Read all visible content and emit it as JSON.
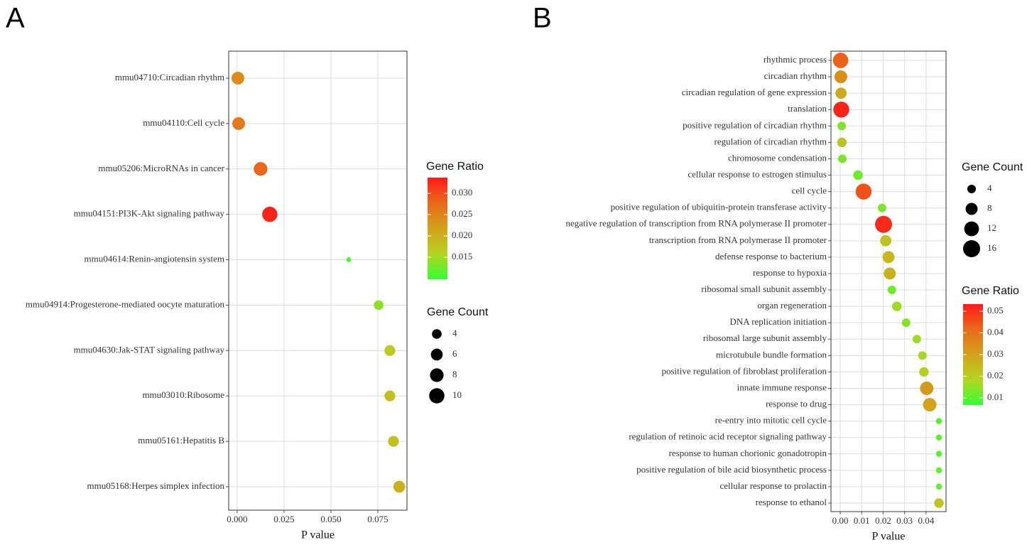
{
  "chart_data": [
    {
      "type": "bubble",
      "panel": "A",
      "categories": [
        "mmu04710:Circadian rhythm",
        "mmu04110:Cell cycle",
        "mmu05206:MicroRNAs in cancer",
        "mmu04151:PI3K-Akt signaling pathway",
        "mmu04614:Renin-angiotensin system",
        "mmu04914:Progesterone-mediated oocyte maturation",
        "mmu04630:Jak-STAT signaling pathway",
        "mmu03010:Ribosome",
        "mmu05161:Hepatitis B",
        "mmu05168:Herpes simplex infection"
      ],
      "x": [
        0.0004,
        0.0008,
        0.0125,
        0.0174,
        0.0595,
        0.0754,
        0.0814,
        0.0814,
        0.0833,
        0.0864
      ],
      "size": [
        7,
        7,
        8,
        10,
        1,
        4,
        5,
        5,
        5,
        6
      ],
      "color_values": [
        0.024,
        0.026,
        0.028,
        0.033,
        0.011,
        0.014,
        0.017,
        0.018,
        0.018,
        0.02
      ],
      "xlim": [
        -0.0045,
        0.0905
      ],
      "xticks": [
        {
          "value": 0,
          "label": "0.000"
        },
        0.025,
        {
          "value": 0.05,
          "label": "0.050"
        },
        0.075
      ],
      "x_label": "P value",
      "color_title": "Gene Ratio",
      "colorlim": [
        0.0098,
        0.0337
      ],
      "colorticks": [
        {
          "value": 0.03,
          "label": "0.030"
        },
        0.025,
        {
          "value": 0.02,
          "label": "0.020"
        },
        0.015
      ],
      "colormap": [
        "#33ff33",
        "#b5d321",
        "#d2a21c",
        "#e86a1a",
        "#ff1a1a"
      ],
      "size_title": "Gene Count",
      "size_legend": [
        4,
        6,
        8,
        10
      ],
      "grid": true
    },
    {
      "type": "bubble",
      "panel": "B",
      "categories": [
        "rhythmic process",
        "circadian rhythm",
        "circadian regulation of gene expression",
        "translation",
        "positive regulation of circadian rhythm",
        "regulation of circadian rhythm",
        "chromosome condensation",
        "cellular response to estrogen stimulus",
        "cell cycle",
        "positive regulation of ubiquitin-protein transferase activity",
        "negative regulation of transcription from RNA polymerase II promoter",
        "transcription from RNA polymerase II promoter",
        "defense response to bacterium",
        "response to hypoxia",
        "ribosomal small subunit assembly",
        "organ regeneration",
        "DNA replication initiation",
        "ribosomal large subunit assembly",
        "microtubule bundle formation",
        "positive regulation of fibroblast proliferation",
        "innate immune response",
        "response to drug",
        "re-entry into mitotic cell cycle",
        "regulation of retinoic acid receptor signaling pathway",
        "response to human chorionic gonadotropin",
        "positive regulation of bile acid biosynthetic process",
        "cellular response to prolactin",
        "response to ethanol"
      ],
      "x": [
        0.0002,
        0.0003,
        0.0004,
        0.0005,
        0.0007,
        0.0008,
        0.001,
        0.0083,
        0.0109,
        0.0195,
        0.0202,
        0.0212,
        0.0225,
        0.0231,
        0.0241,
        0.0264,
        0.0307,
        0.0357,
        0.0383,
        0.039,
        0.0403,
        0.0417,
        0.046,
        0.046,
        0.046,
        0.046,
        0.046,
        0.046
      ],
      "size": [
        13,
        9,
        7,
        14,
        4,
        5,
        4,
        5,
        14,
        4,
        16,
        7,
        8,
        8,
        4,
        5,
        4,
        4,
        4,
        5,
        10,
        10,
        2,
        2,
        2,
        2,
        2,
        5
      ],
      "color_values": [
        0.043,
        0.034,
        0.028,
        0.052,
        0.014,
        0.022,
        0.013,
        0.012,
        0.045,
        0.013,
        0.051,
        0.022,
        0.025,
        0.026,
        0.012,
        0.016,
        0.014,
        0.016,
        0.017,
        0.02,
        0.032,
        0.03,
        0.01,
        0.01,
        0.01,
        0.01,
        0.01,
        0.022
      ],
      "xlim": [
        -0.0043,
        0.0493
      ],
      "xticks": [
        {
          "value": 0,
          "label": "0.00"
        },
        0.01,
        0.02,
        0.03,
        0.04
      ],
      "x_label": "P value",
      "color_title": "Gene Ratio",
      "colorlim": [
        0.0067,
        0.0533
      ],
      "colorticks": [
        0.05,
        0.04,
        0.03,
        0.02,
        0.01
      ],
      "colormap": [
        "#33ff33",
        "#b5d321",
        "#d2a21c",
        "#e86a1a",
        "#ff1a1a"
      ],
      "size_title": "Gene Count",
      "size_legend": [
        4,
        8,
        12,
        16
      ],
      "grid": true
    }
  ]
}
